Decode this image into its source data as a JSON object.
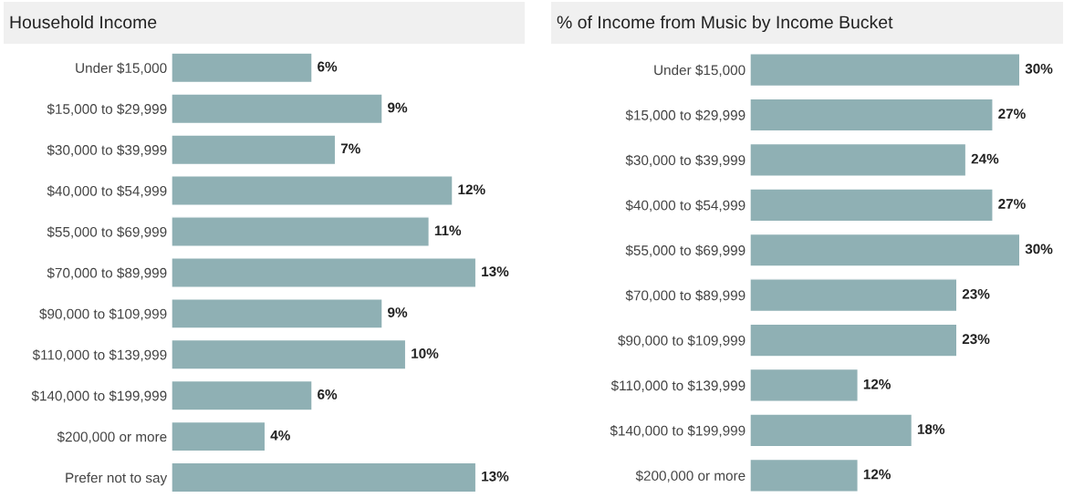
{
  "chart_data": [
    {
      "type": "bar",
      "orientation": "horizontal",
      "title": "Household Income",
      "categories": [
        "Under $15,000",
        "$15,000 to $29,999",
        "$30,000 to $39,999",
        "$40,000 to $54,999",
        "$55,000 to $69,999",
        "$70,000 to $89,999",
        "$90,000 to $109,999",
        "$110,000 to $139,999",
        "$140,000 to $199,999",
        "$200,000 or more",
        "Prefer not to say"
      ],
      "values": [
        6,
        9,
        7,
        12,
        11,
        13,
        9,
        10,
        6,
        4,
        13
      ],
      "color": "#8fb0b4",
      "value_labels": [
        "6%",
        "9%",
        "7%",
        "12%",
        "11%",
        "13%",
        "9%",
        "10%",
        "6%",
        "4%",
        "13%"
      ],
      "tick_labels": "y"
    },
    {
      "type": "bar",
      "orientation": "horizontal",
      "title": "% of Income from Music by Income Bucket",
      "categories": [
        "Under $15,000",
        "$15,000 to $29,999",
        "$30,000 to $39,999",
        "$40,000 to $54,999",
        "$55,000 to $69,999",
        "$70,000 to $89,999",
        "$90,000 to $109,999",
        "$110,000 to $139,999",
        "$140,000 to $199,999",
        "$200,000 or more"
      ],
      "values": [
        30,
        27,
        24,
        27,
        30,
        23,
        23,
        12,
        18,
        12
      ],
      "color": "#8fb0b4",
      "value_labels": [
        "30%",
        "27%",
        "24%",
        "27%",
        "30%",
        "23%",
        "23%",
        "12%",
        "18%",
        "12%"
      ],
      "tick_labels": "y"
    }
  ]
}
